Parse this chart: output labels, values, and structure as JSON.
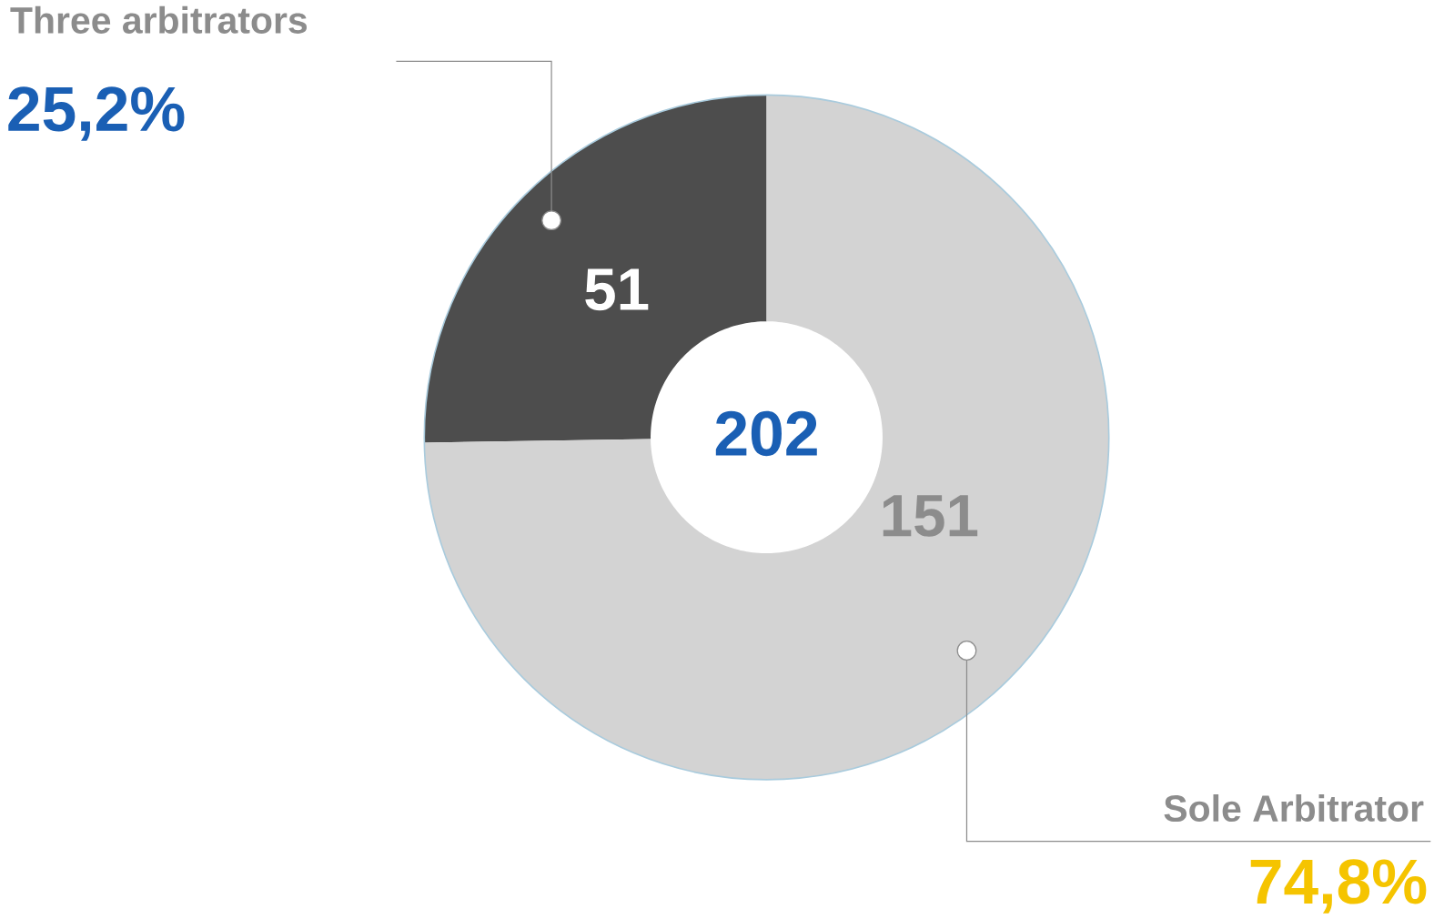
{
  "chart_data": {
    "type": "donut",
    "categories": [
      "Three arbitrators",
      "Sole Arbitrator"
    ],
    "values": [
      51,
      151
    ],
    "colors": [
      "#4d4d4d",
      "#d3d3d3"
    ],
    "value_labels": [
      "51",
      "151"
    ],
    "annotations": [
      "202",
      "25,2%",
      "74,8%"
    ]
  }
}
